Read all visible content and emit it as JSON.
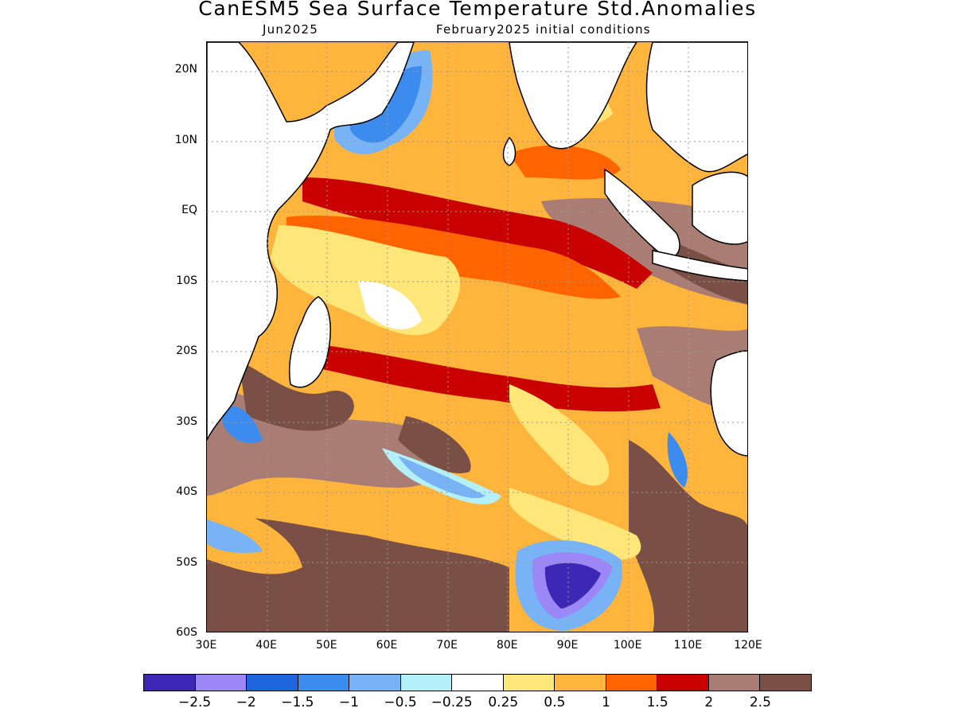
{
  "header": {
    "title": "CanESM5 Sea Surface Temperature Std.Anomalies",
    "valid_month": "Jun2025",
    "initial_conditions": "February2025 initial conditions"
  },
  "map": {
    "lat_labels": [
      "20N",
      "10N",
      "EQ",
      "10S",
      "20S",
      "30S",
      "40S",
      "50S",
      "60S"
    ],
    "lon_labels": [
      "30E",
      "40E",
      "50E",
      "60E",
      "70E",
      "80E",
      "90E",
      "100E",
      "110E",
      "120E"
    ],
    "domain": {
      "lon": [
        30,
        120
      ],
      "lat": [
        -60,
        24
      ]
    },
    "land_color": "#ffffff"
  },
  "legend": {
    "colors": [
      "#3c28b4",
      "#9b87f5",
      "#1e64dc",
      "#3c8cf0",
      "#78b4f5",
      "#b4f0fa",
      "#ffffff",
      "#ffe678",
      "#ffb43c",
      "#ff6400",
      "#c80000",
      "#aa7d74",
      "#7a5046"
    ],
    "tick_labels": [
      "−2.5",
      "−2",
      "−1.5",
      "−1",
      "−0.5",
      "−0.25",
      "0.25",
      "0.5",
      "1",
      "1.5",
      "2",
      "2.5"
    ]
  }
}
